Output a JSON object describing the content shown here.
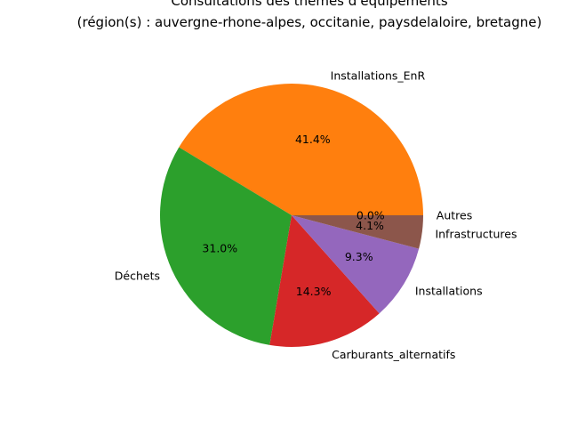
{
  "chart_data": {
    "type": "pie",
    "title_lines": [
      "Consultations des thèmes d'équipements",
      "(région(s) : auvergne-rhone-alpes, occitanie, paysdelaloire, bretagne)"
    ],
    "categories": [
      "Installations_EnR",
      "Déchets",
      "Carburants_alternatifs",
      "Installations",
      "Infrastructures",
      "Autres"
    ],
    "values": [
      41.4,
      31.0,
      14.3,
      9.3,
      4.1,
      0.0
    ],
    "percent_labels": [
      "41.4%",
      "31.0%",
      "14.3%",
      "9.3%",
      "4.1%",
      "0.0%"
    ],
    "colors": [
      "#ff7f0e",
      "#2ca02c",
      "#d62728",
      "#9467bd",
      "#8c564b",
      "#e377c2"
    ],
    "start_angle_deg": 0,
    "direction": "counterclockwise"
  }
}
